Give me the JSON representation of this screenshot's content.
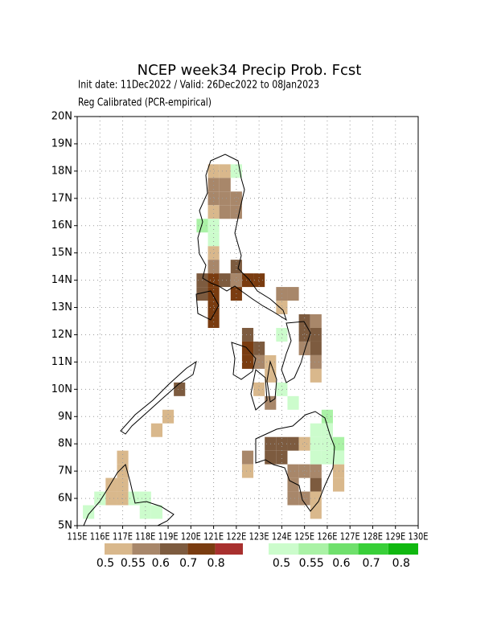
{
  "map": {
    "title": "NCEP week34 Precip Prob. Fcst",
    "subtitle": "Init date: 11Dec2022 / Valid: 26Dec2022 to 08Jan2023",
    "method": "Reg Calibrated (PCR-empirical)",
    "xlim": [
      115,
      130
    ],
    "ylim": [
      5,
      20
    ],
    "cell_size": 0.5,
    "xticks": [
      {
        "value": 115,
        "label": "115E"
      },
      {
        "value": 116,
        "label": "116E"
      },
      {
        "value": 117,
        "label": "117E"
      },
      {
        "value": 118,
        "label": "118E"
      },
      {
        "value": 119,
        "label": "119E"
      },
      {
        "value": 120,
        "label": "120E"
      },
      {
        "value": 121,
        "label": "121E"
      },
      {
        "value": 122,
        "label": "122E"
      },
      {
        "value": 123,
        "label": "123E"
      },
      {
        "value": 124,
        "label": "124E"
      },
      {
        "value": 125,
        "label": "125E"
      },
      {
        "value": 126,
        "label": "126E"
      },
      {
        "value": 127,
        "label": "127E"
      },
      {
        "value": 128,
        "label": "128E"
      },
      {
        "value": 129,
        "label": "129E"
      },
      {
        "value": 130,
        "label": "130E"
      }
    ],
    "yticks": [
      {
        "value": 5,
        "label": "5N"
      },
      {
        "value": 6,
        "label": "6N"
      },
      {
        "value": 7,
        "label": "7N"
      },
      {
        "value": 8,
        "label": "8N"
      },
      {
        "value": 9,
        "label": "9N"
      },
      {
        "value": 10,
        "label": "10N"
      },
      {
        "value": 11,
        "label": "11N"
      },
      {
        "value": 12,
        "label": "12N"
      },
      {
        "value": 13,
        "label": "13N"
      },
      {
        "value": 14,
        "label": "14N"
      },
      {
        "value": 15,
        "label": "15N"
      },
      {
        "value": 16,
        "label": "16N"
      },
      {
        "value": 17,
        "label": "17N"
      },
      {
        "value": 18,
        "label": "18N"
      },
      {
        "value": 19,
        "label": "19N"
      },
      {
        "value": 20,
        "label": "20N"
      }
    ],
    "grid": true,
    "below_legend": {
      "colors": [
        "#d9b88c",
        "#a8876a",
        "#7d5b3f",
        "#7a3c10",
        "#a8302e"
      ],
      "labels": [
        0.5,
        0.55,
        0.6,
        0.7,
        0.8
      ]
    },
    "above_legend": {
      "colors": [
        "#ccfccc",
        "#aaf2a6",
        "#6fe06c",
        "#38cf38",
        "#10b810"
      ],
      "labels": [
        0.5,
        0.55,
        0.6,
        0.7,
        0.8
      ]
    },
    "below_cells": [
      [
        120.75,
        17.75,
        0.52
      ],
      [
        121.25,
        17.75,
        0.52
      ],
      [
        120.75,
        17.25,
        0.57
      ],
      [
        121.25,
        17.25,
        0.57
      ],
      [
        120.75,
        16.75,
        0.57
      ],
      [
        121.25,
        16.75,
        0.57
      ],
      [
        121.75,
        16.75,
        0.57
      ],
      [
        120.75,
        16.25,
        0.52
      ],
      [
        121.25,
        16.25,
        0.57
      ],
      [
        121.75,
        16.25,
        0.57
      ],
      [
        120.75,
        14.75,
        0.52
      ],
      [
        120.75,
        14.25,
        0.57
      ],
      [
        121.75,
        14.25,
        0.62
      ],
      [
        120.25,
        13.75,
        0.65
      ],
      [
        120.75,
        13.75,
        0.75
      ],
      [
        121.25,
        13.75,
        0.62
      ],
      [
        121.75,
        13.75,
        0.57
      ],
      [
        122.25,
        13.75,
        0.75
      ],
      [
        122.75,
        13.75,
        0.75
      ],
      [
        121.75,
        13.25,
        0.75
      ],
      [
        120.75,
        13.25,
        0.75
      ],
      [
        120.25,
        13.25,
        0.62
      ],
      [
        120.75,
        12.75,
        0.75
      ],
      [
        120.75,
        12.25,
        0.75
      ],
      [
        123.75,
        13.25,
        0.57
      ],
      [
        124.25,
        13.25,
        0.57
      ],
      [
        123.75,
        12.75,
        0.52
      ],
      [
        124.75,
        12.25,
        0.62
      ],
      [
        125.25,
        12.25,
        0.57
      ],
      [
        124.75,
        11.75,
        0.62
      ],
      [
        125.25,
        11.75,
        0.62
      ],
      [
        124.75,
        11.25,
        0.57
      ],
      [
        125.25,
        11.25,
        0.62
      ],
      [
        125.25,
        10.75,
        0.57
      ],
      [
        125.25,
        10.25,
        0.52
      ],
      [
        122.25,
        11.75,
        0.62
      ],
      [
        122.25,
        11.25,
        0.75
      ],
      [
        122.25,
        10.75,
        0.75
      ],
      [
        122.75,
        11.25,
        0.62
      ],
      [
        122.75,
        10.75,
        0.57
      ],
      [
        123.25,
        10.75,
        0.52
      ],
      [
        123.25,
        10.25,
        0.52
      ],
      [
        122.75,
        9.75,
        0.52
      ],
      [
        123.25,
        9.25,
        0.57
      ],
      [
        119.25,
        9.75,
        0.62
      ],
      [
        118.75,
        8.75,
        0.52
      ],
      [
        118.25,
        8.25,
        0.52
      ],
      [
        123.25,
        7.75,
        0.62
      ],
      [
        123.75,
        7.75,
        0.62
      ],
      [
        124.25,
        7.75,
        0.62
      ],
      [
        123.25,
        7.25,
        0.62
      ],
      [
        123.75,
        7.25,
        0.62
      ],
      [
        124.75,
        7.75,
        0.52
      ],
      [
        124.25,
        6.75,
        0.57
      ],
      [
        124.25,
        6.25,
        0.57
      ],
      [
        124.75,
        6.75,
        0.57
      ],
      [
        125.25,
        6.75,
        0.57
      ],
      [
        124.25,
        5.75,
        0.57
      ],
      [
        124.75,
        5.75,
        0.57
      ],
      [
        125.25,
        6.25,
        0.62
      ],
      [
        125.25,
        5.75,
        0.52
      ],
      [
        125.25,
        5.25,
        0.52
      ],
      [
        122.25,
        7.25,
        0.57
      ],
      [
        122.25,
        6.75,
        0.52
      ],
      [
        126.25,
        6.75,
        0.52
      ],
      [
        126.25,
        6.25,
        0.52
      ],
      [
        116.75,
        7.25,
        0.52
      ],
      [
        116.75,
        6.75,
        0.52
      ],
      [
        116.25,
        6.25,
        0.52
      ],
      [
        116.75,
        6.25,
        0.52
      ],
      [
        116.25,
        5.75,
        0.52
      ],
      [
        116.75,
        5.75,
        0.52
      ]
    ],
    "above_cells": [
      [
        121.75,
        17.75,
        0.52
      ],
      [
        120.25,
        15.75,
        0.57
      ],
      [
        120.75,
        15.75,
        0.52
      ],
      [
        120.75,
        15.25,
        0.52
      ],
      [
        123.75,
        11.75,
        0.52
      ],
      [
        123.75,
        9.75,
        0.52
      ],
      [
        124.25,
        9.25,
        0.52
      ],
      [
        125.75,
        8.75,
        0.57
      ],
      [
        125.25,
        8.25,
        0.52
      ],
      [
        125.75,
        8.25,
        0.52
      ],
      [
        126.25,
        7.75,
        0.57
      ],
      [
        125.25,
        7.75,
        0.52
      ],
      [
        125.75,
        7.75,
        0.52
      ],
      [
        126.25,
        7.25,
        0.52
      ],
      [
        125.25,
        7.25,
        0.52
      ],
      [
        125.75,
        7.25,
        0.52
      ],
      [
        115.75,
        5.75,
        0.52
      ],
      [
        115.25,
        5.25,
        0.52
      ],
      [
        117.25,
        5.75,
        0.52
      ],
      [
        117.75,
        5.75,
        0.52
      ],
      [
        117.75,
        5.25,
        0.52
      ],
      [
        118.25,
        5.25,
        0.52
      ]
    ]
  }
}
